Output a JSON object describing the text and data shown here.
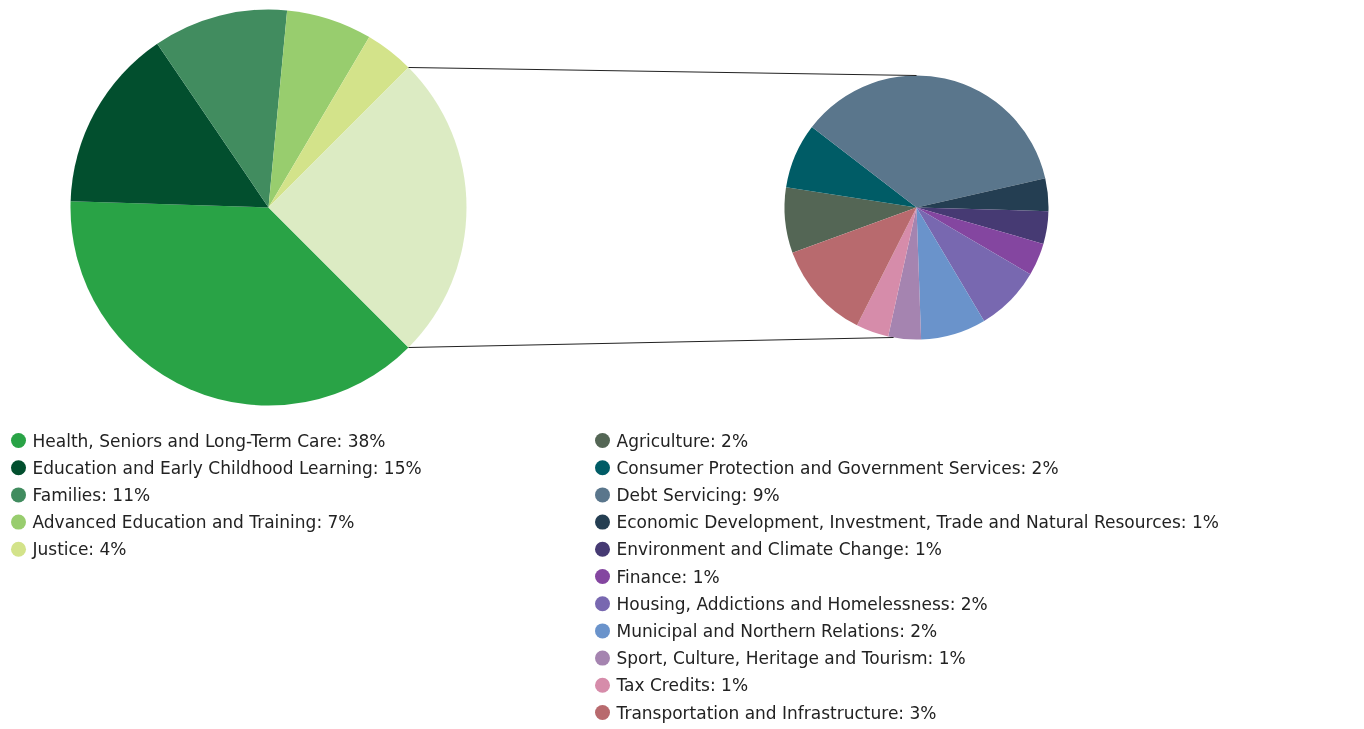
{
  "chart_data": [
    {
      "type": "pie",
      "categories": [
        "Health, Seniors and Long-Term Care",
        "Education and Early Childhood Learning",
        "Families",
        "Advanced Education and Training",
        "Justice",
        null
      ],
      "values": [
        38,
        15,
        11,
        7,
        4,
        25
      ],
      "value_labels": [
        "38%",
        "15%",
        "11%",
        "7%",
        "4%",
        null
      ],
      "colors": [
        "#29a346",
        "#024f2e",
        "#418c5f",
        "#98cd6e",
        "#d3e38a",
        "#dcebc3"
      ],
      "legend": "bottom"
    },
    {
      "type": "pie",
      "categories": [
        "Agriculture",
        "Consumer Protection and Government Services",
        "Debt Servicing",
        "Economic Development, Investment, Trade and Natural Resources",
        "Environment and Climate Change",
        "Finance",
        "Housing, Addictions and Homelessness",
        "Municipal and Northern Relations",
        "Sport, Culture, Heritage and Tourism",
        "Tax Credits",
        "Transportation and Infrastructure"
      ],
      "values": [
        2,
        2,
        9,
        1,
        1,
        1,
        2,
        2,
        1,
        1,
        3
      ],
      "value_labels": [
        "2%",
        "2%",
        "9%",
        "1%",
        "1%",
        "1%",
        "2%",
        "2%",
        "1%",
        "1%",
        "3%"
      ],
      "colors": [
        "#546655",
        "#005c66",
        "#5a768c",
        "#243e52",
        "#463a73",
        "#8446a0",
        "#7868b0",
        "#6a93cb",
        "#a584b0",
        "#d68caa",
        "#b86a6e"
      ],
      "legend": "bottom"
    }
  ]
}
